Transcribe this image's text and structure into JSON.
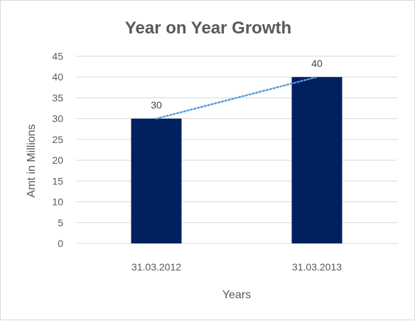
{
  "chart_data": {
    "type": "bar",
    "title": "Year on Year Growth",
    "xlabel": "Years",
    "ylabel": "Amt in Millions",
    "categories": [
      "31.03.2012",
      "31.03.2013"
    ],
    "values": [
      30,
      40
    ],
    "data_labels": [
      "30",
      "40"
    ],
    "ylim": [
      0,
      45
    ],
    "yticks": [
      0,
      5,
      10,
      15,
      20,
      25,
      30,
      35,
      40,
      45
    ],
    "grid": true,
    "legend": "none",
    "trendline": "linear (dotted)",
    "colors": {
      "bar": "#002060",
      "trendline": "#5b9bd5",
      "grid": "#d9d9d9",
      "text": "#595959"
    }
  }
}
